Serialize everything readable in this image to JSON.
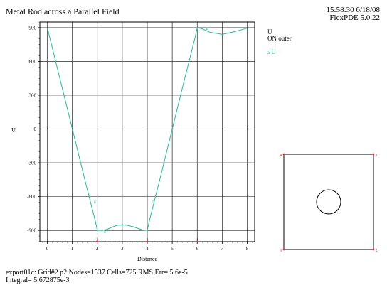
{
  "header": {
    "title": "Metal Rod across a Parallel Field",
    "time": "15:58:30 6/18/08",
    "version": "FlexPDE 5.0.22"
  },
  "legend": {
    "variable": "U",
    "scope": "ON outer",
    "marker": "a",
    "series_label": "U"
  },
  "footer": {
    "line1": "export01c:  Grid#2  p2  Nodes=1537 Cells=725 RMS Err= 5.6e-5",
    "line2": "Integral=  5.672875e-3"
  },
  "colors": {
    "curve": "#2db89a",
    "node_marker": "#e03030",
    "grid": "#000000"
  },
  "chart_data": {
    "type": "line",
    "title": "Metal Rod across a Parallel Field",
    "xlabel": "Distance",
    "ylabel": "U",
    "xlim": [
      -0.3,
      8.3
    ],
    "ylim": [
      -1000,
      950
    ],
    "x_ticks": [
      0,
      1,
      2,
      3,
      4,
      5,
      6,
      7,
      8
    ],
    "y_ticks": [
      900,
      600,
      300,
      0,
      -300,
      -600,
      -900
    ],
    "grid": true,
    "series": [
      {
        "name": "U",
        "marker": "a",
        "marker_at": [
          [
            2.3,
            -905
          ],
          [
            6.4,
            895
          ],
          [
            1.9,
            -640
          ],
          [
            4.25,
            -640
          ]
        ],
        "x": [
          0,
          0.5,
          1,
          1.5,
          1.9,
          2.0,
          2.2,
          2.4,
          2.6,
          2.8,
          3.0,
          3.2,
          3.4,
          3.6,
          3.8,
          4.0,
          4.1,
          4.5,
          5.0,
          5.5,
          5.9,
          6.0,
          6.2,
          6.5,
          7.0,
          7.5,
          8.0
        ],
        "y": [
          900,
          450,
          0,
          -450,
          -800,
          -900,
          -900,
          -890,
          -870,
          -855,
          -850,
          -855,
          -865,
          -880,
          -895,
          -900,
          -800,
          -450,
          0,
          450,
          800,
          900,
          890,
          860,
          840,
          865,
          895
        ]
      }
    ],
    "node_markers": [
      {
        "x": 2,
        "label": "2"
      },
      {
        "x": 4,
        "label": "3"
      },
      {
        "x": 6,
        "label": "4"
      }
    ]
  },
  "domain_view": {
    "corner_labels": [
      "4",
      "3",
      "1",
      "2"
    ]
  }
}
